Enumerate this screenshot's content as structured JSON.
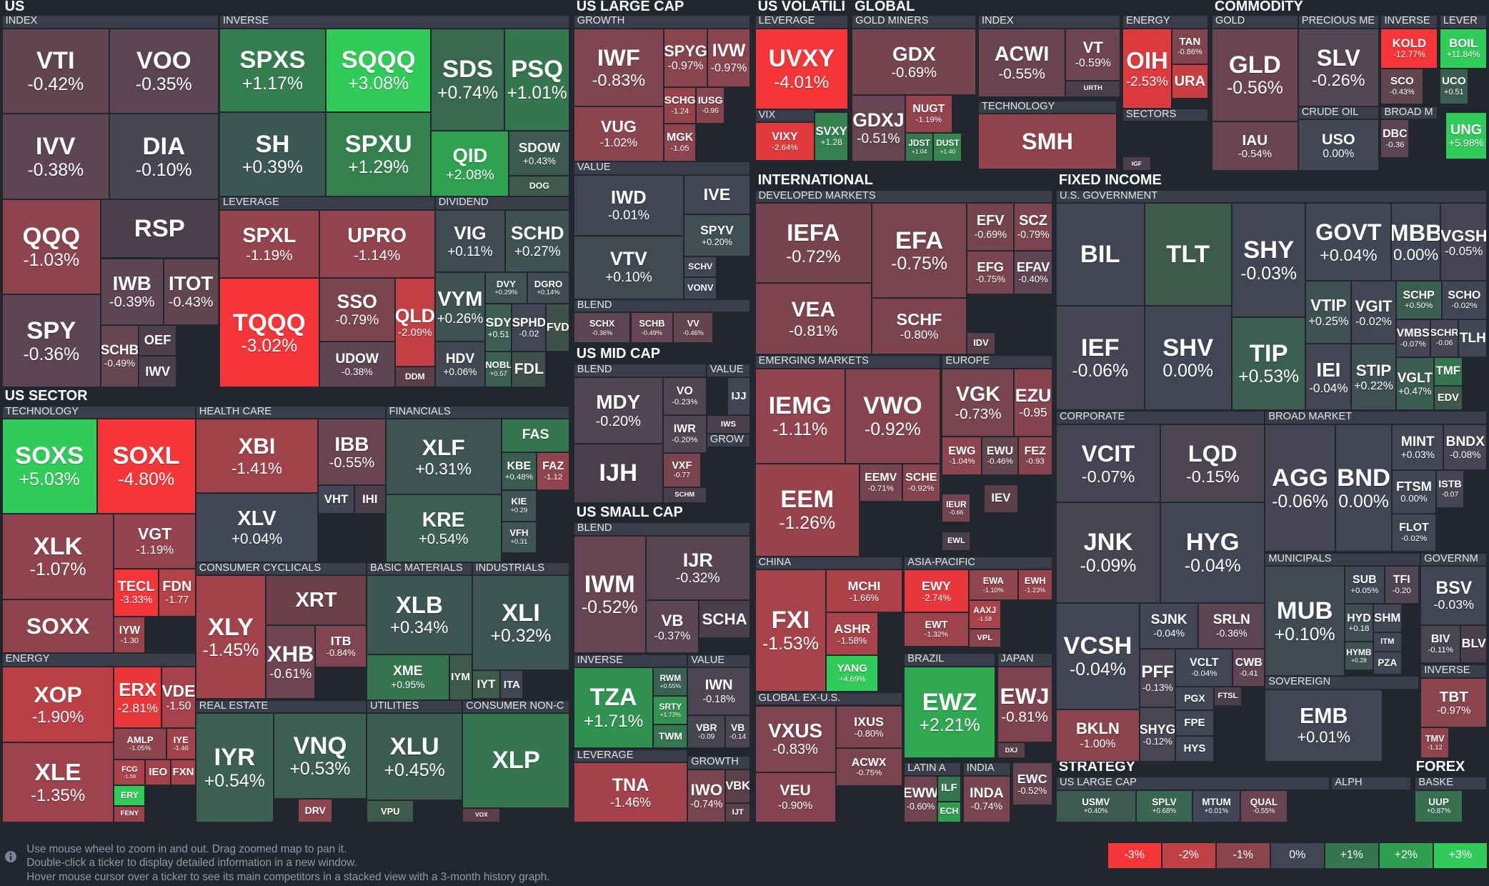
{
  "sections": [
    "US",
    "US SECTOR",
    "US LARGE CAP",
    "US MID CAP",
    "US SMALL CAP",
    "US VOLATILI",
    "GLOBAL",
    "COMMODITY",
    "INTERNATIONAL",
    "FIXED INCOME",
    "STRATEGY",
    "FOREX"
  ],
  "groups": [
    "INDEX",
    "INVERSE",
    "LEVERAGE",
    "DIVIDEND",
    "TECHNOLOGY",
    "HEALTH CARE",
    "FINANCIALS",
    "ENERGY",
    "CONSUMER CYCLICALS",
    "BASIC MATERIALS",
    "INDUSTRIALS",
    "REAL ESTATE",
    "UTILITIES",
    "CONSUMER NON-C",
    "GROWTH",
    "VALUE",
    "BLEND",
    "BLEND",
    "VALUE",
    "GROW",
    "BLEND",
    "INVERSE",
    "VALUE",
    "LEVERAGE",
    "GROWTH",
    "LEVERAGE",
    "VIX",
    "GOLD MINERS",
    "INDEX",
    "TECHNOLOGY",
    "ENERGY",
    "SECTORS",
    "GOLD",
    "PRECIOUS ME",
    "INVERSE",
    "LEVER",
    "CRUDE OIL",
    "BROAD M",
    "DEVELOPED MARKETS",
    "EMERGING MARKETS",
    "EUROPE",
    "CHINA",
    "ASIA-PACIFIC",
    "BRAZIL",
    "JAPAN",
    "GLOBAL EX-U.S.",
    "LATIN A",
    "INDIA",
    "U.S. GOVERNMENT",
    "CORPORATE",
    "BROAD MARKET",
    "MUNICIPALS",
    "GOVERNM",
    "INVERSE",
    "SOVEREIGN",
    "US LARGE CAP",
    "ALPH",
    "BASKE"
  ],
  "tiles": [
    {
      "ticker": "VTI",
      "change": "-0.42%"
    },
    {
      "ticker": "VOO",
      "change": "-0.35%"
    },
    {
      "ticker": "IVV",
      "change": "-0.38%"
    },
    {
      "ticker": "DIA",
      "change": "-0.10%"
    },
    {
      "ticker": "QQQ",
      "change": "-1.03%"
    },
    {
      "ticker": "RSP",
      "color": "#4a3f4b"
    },
    {
      "ticker": "SPY",
      "change": "-0.36%"
    },
    {
      "ticker": "IWB",
      "change": "-0.39%"
    },
    {
      "ticker": "ITOT",
      "change": "-0.43%"
    },
    {
      "ticker": "SCHB",
      "change": "-0.49%"
    },
    {
      "ticker": "OEF",
      "color": "#4f3f4a"
    },
    {
      "ticker": "IWV",
      "color": "#4a3f4b"
    },
    {
      "ticker": "SPXS",
      "change": "+1.17%"
    },
    {
      "ticker": "SQQQ",
      "change": "+3.08%"
    },
    {
      "ticker": "SDS",
      "change": "+0.74%"
    },
    {
      "ticker": "PSQ",
      "change": "+1.01%"
    },
    {
      "ticker": "SH",
      "change": "+0.39%"
    },
    {
      "ticker": "SPXU",
      "change": "+1.29%"
    },
    {
      "ticker": "QID",
      "change": "+2.08%"
    },
    {
      "ticker": "SDOW",
      "change": "+0.43%"
    },
    {
      "ticker": "DOG",
      "color": "#3d5a4a"
    },
    {
      "ticker": "SPXL",
      "change": "-1.19%"
    },
    {
      "ticker": "UPRO",
      "change": "-1.14%"
    },
    {
      "ticker": "TQQQ",
      "change": "-3.02%"
    },
    {
      "ticker": "SSO",
      "change": "-0.79%"
    },
    {
      "ticker": "QLD",
      "change": "-2.09%"
    },
    {
      "ticker": "UDOW",
      "change": "-0.38%"
    },
    {
      "ticker": "DDM",
      "color": "#5a3f48"
    },
    {
      "ticker": "VIG",
      "change": "+0.11%"
    },
    {
      "ticker": "SCHD",
      "change": "+0.27%"
    },
    {
      "ticker": "VYM",
      "change": "+0.26%"
    },
    {
      "ticker": "DVY",
      "change": "+0.29%"
    },
    {
      "ticker": "DGRO",
      "change": "+0.14%"
    },
    {
      "ticker": "SDY",
      "change": "+0.51"
    },
    {
      "ticker": "SPHD",
      "change": "-0.02"
    },
    {
      "ticker": "FVD",
      "color": "#3f4f4a"
    },
    {
      "ticker": "HDV",
      "change": "+0.06%"
    },
    {
      "ticker": "NOBL",
      "change": "+0.57"
    },
    {
      "ticker": "FDL",
      "color": "#3f4f4a"
    },
    {
      "ticker": "SOXS",
      "change": "+5.03%"
    },
    {
      "ticker": "SOXL",
      "change": "-4.80%"
    },
    {
      "ticker": "XLK",
      "change": "-1.07%"
    },
    {
      "ticker": "VGT",
      "change": "-1.19%"
    },
    {
      "ticker": "TECL",
      "change": "-3.33%"
    },
    {
      "ticker": "FDN",
      "change": "-1.77"
    },
    {
      "ticker": "SOXX",
      "color": "#8f434d"
    },
    {
      "ticker": "IYW",
      "change": "-1.30"
    },
    {
      "ticker": "XOP",
      "change": "-1.90%"
    },
    {
      "ticker": "ERX",
      "change": "-2.81%"
    },
    {
      "ticker": "VDE",
      "change": "-1.50"
    },
    {
      "ticker": "XLE",
      "change": "-1.35%"
    },
    {
      "ticker": "AMLP",
      "change": "-1.05%"
    },
    {
      "ticker": "IYE",
      "change": "-1.46"
    },
    {
      "ticker": "FCG",
      "change": "-1.59"
    },
    {
      "ticker": "IEO",
      "color": "#a2414a"
    },
    {
      "ticker": "FXN",
      "color": "#a2414a"
    },
    {
      "ticker": "ERY",
      "color": "#30cc5a"
    },
    {
      "ticker": "FENY",
      "color": "#9a424b"
    },
    {
      "ticker": "XBI",
      "change": "-1.41%"
    },
    {
      "ticker": "IBB",
      "change": "-0.55%"
    },
    {
      "ticker": "XLV",
      "change": "+0.04%"
    },
    {
      "ticker": "VHT",
      "color": "#414554"
    },
    {
      "ticker": "IHI",
      "color": "#4a3f4b"
    },
    {
      "ticker": "XLF",
      "change": "+0.31%"
    },
    {
      "ticker": "FAS",
      "color": "#35764e"
    },
    {
      "ticker": "KBE",
      "change": "+0.48%"
    },
    {
      "ticker": "FAZ",
      "change": "-1.12"
    },
    {
      "ticker": "KRE",
      "change": "+0.54%"
    },
    {
      "ticker": "KIE",
      "change": "+0.29"
    },
    {
      "ticker": "VFH",
      "change": "+0.31"
    },
    {
      "ticker": "XRT",
      "color": "#6b404b"
    },
    {
      "ticker": "XLY",
      "change": "-1.45%"
    },
    {
      "ticker": "XHB",
      "change": "-0.61%"
    },
    {
      "ticker": "ITB",
      "change": "-0.84%"
    },
    {
      "ticker": "XLB",
      "change": "+0.34%"
    },
    {
      "ticker": "XME",
      "change": "+0.95%"
    },
    {
      "ticker": "IYM",
      "color": "#3d5a4a"
    },
    {
      "ticker": "XLI",
      "change": "+0.32%"
    },
    {
      "ticker": "IYT",
      "color": "#3d5a4a"
    },
    {
      "ticker": "ITA",
      "color": "#414554"
    },
    {
      "ticker": "IYR",
      "change": "+0.54%"
    },
    {
      "ticker": "VNQ",
      "change": "+0.53%"
    },
    {
      "ticker": "DRV",
      "color": "#8b444e"
    },
    {
      "ticker": "XLU",
      "change": "+0.45%"
    },
    {
      "ticker": "VPU",
      "color": "#3d5a4a"
    },
    {
      "ticker": "XLP",
      "color": "#35764e"
    },
    {
      "ticker": "VOX",
      "color": "#5a3f48"
    },
    {
      "ticker": "IWF",
      "change": "-0.83%"
    },
    {
      "ticker": "SPYG",
      "change": "-0.97%"
    },
    {
      "ticker": "IVW",
      "change": "-0.97%"
    },
    {
      "ticker": "SCHG",
      "change": "-1.24"
    },
    {
      "ticker": "IUSG",
      "change": "-0.96"
    },
    {
      "ticker": "VUG",
      "change": "-1.02%"
    },
    {
      "ticker": "MGK",
      "change": "-1.05"
    },
    {
      "ticker": "IWD",
      "change": "-0.01%"
    },
    {
      "ticker": "IVE",
      "color": "#414554"
    },
    {
      "ticker": "SPYV",
      "change": "+0.20%"
    },
    {
      "ticker": "VTV",
      "change": "+0.10%"
    },
    {
      "ticker": "SCHV",
      "color": "#414554"
    },
    {
      "ticker": "VONV",
      "color": "#414554"
    },
    {
      "ticker": "SCHX",
      "change": "-0.36%"
    },
    {
      "ticker": "SCHB",
      "change": "-0.49%"
    },
    {
      "ticker": "VV",
      "change": "-0.46%"
    },
    {
      "ticker": "MDY",
      "change": "-0.20%"
    },
    {
      "ticker": "VO",
      "change": "-0.23%"
    },
    {
      "ticker": "IWR",
      "change": "-0.20%"
    },
    {
      "ticker": "IJH",
      "color": "#4a3f4b"
    },
    {
      "ticker": "VXF",
      "change": "-0.77"
    },
    {
      "ticker": "SCHM",
      "color": "#4a3f4b"
    },
    {
      "ticker": "IJJ",
      "color": "#414554"
    },
    {
      "ticker": "IWS",
      "color": "#4a3f4b"
    },
    {
      "ticker": "IWM",
      "change": "-0.52%"
    },
    {
      "ticker": "IJR",
      "change": "-0.32%"
    },
    {
      "ticker": "VB",
      "change": "-0.37%"
    },
    {
      "ticker": "SCHA",
      "color": "#4a3f4b"
    },
    {
      "ticker": "TZA",
      "change": "+1.71%"
    },
    {
      "ticker": "RWM",
      "change": "+0.55%"
    },
    {
      "ticker": "SRTY",
      "change": "+1.72%"
    },
    {
      "ticker": "TWM",
      "color": "#35764e"
    },
    {
      "ticker": "IWN",
      "change": "-0.18%"
    },
    {
      "ticker": "VBR",
      "change": "-0.09"
    },
    {
      "ticker": "VB",
      "change": "-0.14"
    },
    {
      "ticker": "TNA",
      "change": "-1.46%"
    },
    {
      "ticker": "IWO",
      "change": "-0.74%"
    },
    {
      "ticker": "VBK",
      "color": "#5a3f48"
    },
    {
      "ticker": "IJT",
      "color": "#5a3f48"
    },
    {
      "ticker": "UVXY",
      "change": "-4.01%"
    },
    {
      "ticker": "VIXY",
      "change": "-2.64%"
    },
    {
      "ticker": "SVXY",
      "change": "+1.28"
    },
    {
      "ticker": "GDX",
      "change": "-0.69%"
    },
    {
      "ticker": "GDXJ",
      "change": "-0.51%"
    },
    {
      "ticker": "NUGT",
      "change": "-1.19%"
    },
    {
      "ticker": "JDST",
      "change": "+1.04"
    },
    {
      "ticker": "DUST",
      "change": "+1.40"
    },
    {
      "ticker": "ACWI",
      "change": "-0.55%"
    },
    {
      "ticker": "VT",
      "change": "-0.59%"
    },
    {
      "ticker": "URTH",
      "color": "#4a3f4b"
    },
    {
      "ticker": "SMH",
      "color": "#8f434d"
    },
    {
      "ticker": "OIH",
      "change": "-2.53%"
    },
    {
      "ticker": "TAN",
      "change": "-0.86%"
    },
    {
      "ticker": "URA",
      "color": "#c93e43"
    },
    {
      "ticker": "IGF",
      "color": "#4a3f4b"
    },
    {
      "ticker": "GLD",
      "change": "-0.56%"
    },
    {
      "ticker": "IAU",
      "change": "-0.54%"
    },
    {
      "ticker": "SLV",
      "change": "-0.26%"
    },
    {
      "ticker": "USO",
      "change": "0.00%"
    },
    {
      "ticker": "KOLD",
      "change": "-12.77%"
    },
    {
      "ticker": "SCO",
      "change": "-0.43%"
    },
    {
      "ticker": "DBC",
      "change": "-0.36"
    },
    {
      "ticker": "BOIL",
      "change": "+11.84%"
    },
    {
      "ticker": "UCO",
      "change": "+0.51"
    },
    {
      "ticker": "UNG",
      "change": "+5.98%"
    },
    {
      "ticker": "IEFA",
      "change": "-0.72%"
    },
    {
      "ticker": "EFA",
      "change": "-0.75%"
    },
    {
      "ticker": "EFV",
      "change": "-0.69%"
    },
    {
      "ticker": "SCZ",
      "change": "-0.79%"
    },
    {
      "ticker": "EFG",
      "change": "-0.75%"
    },
    {
      "ticker": "EFAV",
      "change": "-0.40%"
    },
    {
      "ticker": "VEA",
      "change": "-0.81%"
    },
    {
      "ticker": "SCHF",
      "change": "-0.80%"
    },
    {
      "ticker": "IDV",
      "color": "#5a3f48"
    },
    {
      "ticker": "IEMG",
      "change": "-1.11%"
    },
    {
      "ticker": "VWO",
      "change": "-0.92%"
    },
    {
      "ticker": "EEM",
      "change": "-1.26%"
    },
    {
      "ticker": "EEMV",
      "change": "-0.71%"
    },
    {
      "ticker": "SCHE",
      "change": "-0.92%"
    },
    {
      "ticker": "VGK",
      "change": "-0.73%"
    },
    {
      "ticker": "EZU",
      "change": "-0.95"
    },
    {
      "ticker": "EWG",
      "change": "-1.04%"
    },
    {
      "ticker": "EWU",
      "change": "-0.46%"
    },
    {
      "ticker": "FEZ",
      "change": "-0.93"
    },
    {
      "ticker": "IEUR",
      "change": "-0.66"
    },
    {
      "ticker": "IEV",
      "color": "#5a3f48"
    },
    {
      "ticker": "EWL",
      "color": "#4a3f4b"
    },
    {
      "ticker": "FXI",
      "change": "-1.53%"
    },
    {
      "ticker": "MCHI",
      "change": "-1.66%"
    },
    {
      "ticker": "ASHR",
      "change": "-1.58%"
    },
    {
      "ticker": "YANG",
      "change": "+4.69%"
    },
    {
      "ticker": "EWY",
      "change": "-2.74%"
    },
    {
      "ticker": "EWA",
      "change": "-1.10%"
    },
    {
      "ticker": "EWH",
      "change": "-1.23%"
    },
    {
      "ticker": "AAXJ",
      "change": "-1.58"
    },
    {
      "ticker": "EWT",
      "change": "-1.32%"
    },
    {
      "ticker": "VPL",
      "color": "#8b444e"
    },
    {
      "ticker": "EWZ",
      "change": "+2.21%"
    },
    {
      "ticker": "EWJ",
      "change": "-0.81%"
    },
    {
      "ticker": "DXJ",
      "color": "#5a3f48"
    },
    {
      "ticker": "VXUS",
      "change": "-0.83%"
    },
    {
      "ticker": "IXUS",
      "change": "-0.80%"
    },
    {
      "ticker": "ACWX",
      "change": "-0.75%"
    },
    {
      "ticker": "VEU",
      "change": "-0.90%"
    },
    {
      "ticker": "EWW",
      "change": "-0.60%"
    },
    {
      "ticker": "ILF",
      "color": "#35764e"
    },
    {
      "ticker": "ECH",
      "color": "#2f9e4f"
    },
    {
      "ticker": "INDA",
      "change": "-0.74%"
    },
    {
      "ticker": "EWC",
      "change": "-0.52%"
    },
    {
      "ticker": "BIL",
      "color": "#414554"
    },
    {
      "ticker": "TLT",
      "color": "#3d5a4a"
    },
    {
      "ticker": "SHY",
      "change": "-0.03%"
    },
    {
      "ticker": "GOVT",
      "change": "+0.04%"
    },
    {
      "ticker": "MBB",
      "change": "0.00%"
    },
    {
      "ticker": "VGSH",
      "change": "-0.05%"
    },
    {
      "ticker": "IEF",
      "change": "-0.06%"
    },
    {
      "ticker": "SHV",
      "change": "0.00%"
    },
    {
      "ticker": "TIP",
      "change": "+0.53%"
    },
    {
      "ticker": "VTIP",
      "change": "+0.25%"
    },
    {
      "ticker": "VGIT",
      "change": "-0.02%"
    },
    {
      "ticker": "SCHP",
      "change": "+0.50%"
    },
    {
      "ticker": "SCHO",
      "change": "-0.02%"
    },
    {
      "ticker": "VMBS",
      "change": "-0.07%"
    },
    {
      "ticker": "SCHR",
      "change": "-0.06"
    },
    {
      "ticker": "TLH",
      "color": "#414554"
    },
    {
      "ticker": "IEI",
      "change": "-0.04%"
    },
    {
      "ticker": "STIP",
      "change": "+0.22%"
    },
    {
      "ticker": "VGLT",
      "change": "+0.47%"
    },
    {
      "ticker": "TMF",
      "color": "#35764e"
    },
    {
      "ticker": "EDV",
      "color": "#3d5a4a"
    },
    {
      "ticker": "VCIT",
      "change": "-0.07%"
    },
    {
      "ticker": "LQD",
      "change": "-0.15%"
    },
    {
      "ticker": "JNK",
      "change": "-0.09%"
    },
    {
      "ticker": "HYG",
      "change": "-0.04%"
    },
    {
      "ticker": "VCSH",
      "change": "-0.04%"
    },
    {
      "ticker": "SJNK",
      "change": "-0.04%"
    },
    {
      "ticker": "SRLN",
      "change": "-0.36%"
    },
    {
      "ticker": "PFF",
      "change": "-0.13%"
    },
    {
      "ticker": "VCLT",
      "change": "-0.04%"
    },
    {
      "ticker": "CWB",
      "change": "-0.41"
    },
    {
      "ticker": "PGX",
      "color": "#414554"
    },
    {
      "ticker": "FTSL",
      "color": "#4a3f4b"
    },
    {
      "ticker": "BKLN",
      "change": "-1.00%"
    },
    {
      "ticker": "SHYG",
      "change": "-0.12%"
    },
    {
      "ticker": "FPE",
      "color": "#414554"
    },
    {
      "ticker": "HYS",
      "color": "#414554"
    },
    {
      "ticker": "AGG",
      "change": "-0.06%"
    },
    {
      "ticker": "BND",
      "change": "0.00%"
    },
    {
      "ticker": "MINT",
      "change": "+0.03%"
    },
    {
      "ticker": "BNDX",
      "change": "-0.08%"
    },
    {
      "ticker": "FTSM",
      "change": "0.00%"
    },
    {
      "ticker": "ISTB",
      "change": "-0.07"
    },
    {
      "ticker": "FLOT",
      "change": "-0.02%"
    },
    {
      "ticker": "MUB",
      "change": "+0.10%"
    },
    {
      "ticker": "SUB",
      "change": "+0.05%"
    },
    {
      "ticker": "TFI",
      "change": "-0.20"
    },
    {
      "ticker": "HYD",
      "change": "+0.18"
    },
    {
      "ticker": "SHM",
      "color": "#414554"
    },
    {
      "ticker": "ITM",
      "color": "#414554"
    },
    {
      "ticker": "HYMB",
      "change": "+0.28"
    },
    {
      "ticker": "PZA",
      "color": "#414554"
    },
    {
      "ticker": "BSV",
      "change": "-0.03%"
    },
    {
      "ticker": "BIV",
      "change": "-0.11%"
    },
    {
      "ticker": "BLV",
      "color": "#4a3f4b"
    },
    {
      "ticker": "TBT",
      "change": "-0.97%"
    },
    {
      "ticker": "TMV",
      "change": "-1.12"
    },
    {
      "ticker": "EMB",
      "change": "+0.01%"
    },
    {
      "ticker": "USMV",
      "change": "+0.40%"
    },
    {
      "ticker": "SPLV",
      "change": "+0.68%"
    },
    {
      "ticker": "MTUM",
      "change": "+0.01%"
    },
    {
      "ticker": "QUAL",
      "change": "-0.55%"
    },
    {
      "ticker": "UUP",
      "change": "+0.87%"
    }
  ],
  "footer": [
    "Use mouse wheel to zoom in and out. Drag zoomed map to pan it.",
    "Double-click a ticker to display detailed information in a new window.",
    "Hover mouse cursor over a ticker to see its main competitors in a stacked view with a 3-month history graph."
  ],
  "legend": [
    {
      "label": "-3%",
      "color": "#f63538"
    },
    {
      "label": "-2%",
      "color": "#bf4045"
    },
    {
      "label": "-1%",
      "color": "#8b444e"
    },
    {
      "label": "0%",
      "color": "#414554"
    },
    {
      "label": "+1%",
      "color": "#35764e"
    },
    {
      "label": "+2%",
      "color": "#2f9e4f"
    },
    {
      "label": "+3%",
      "color": "#30cc5a"
    }
  ]
}
